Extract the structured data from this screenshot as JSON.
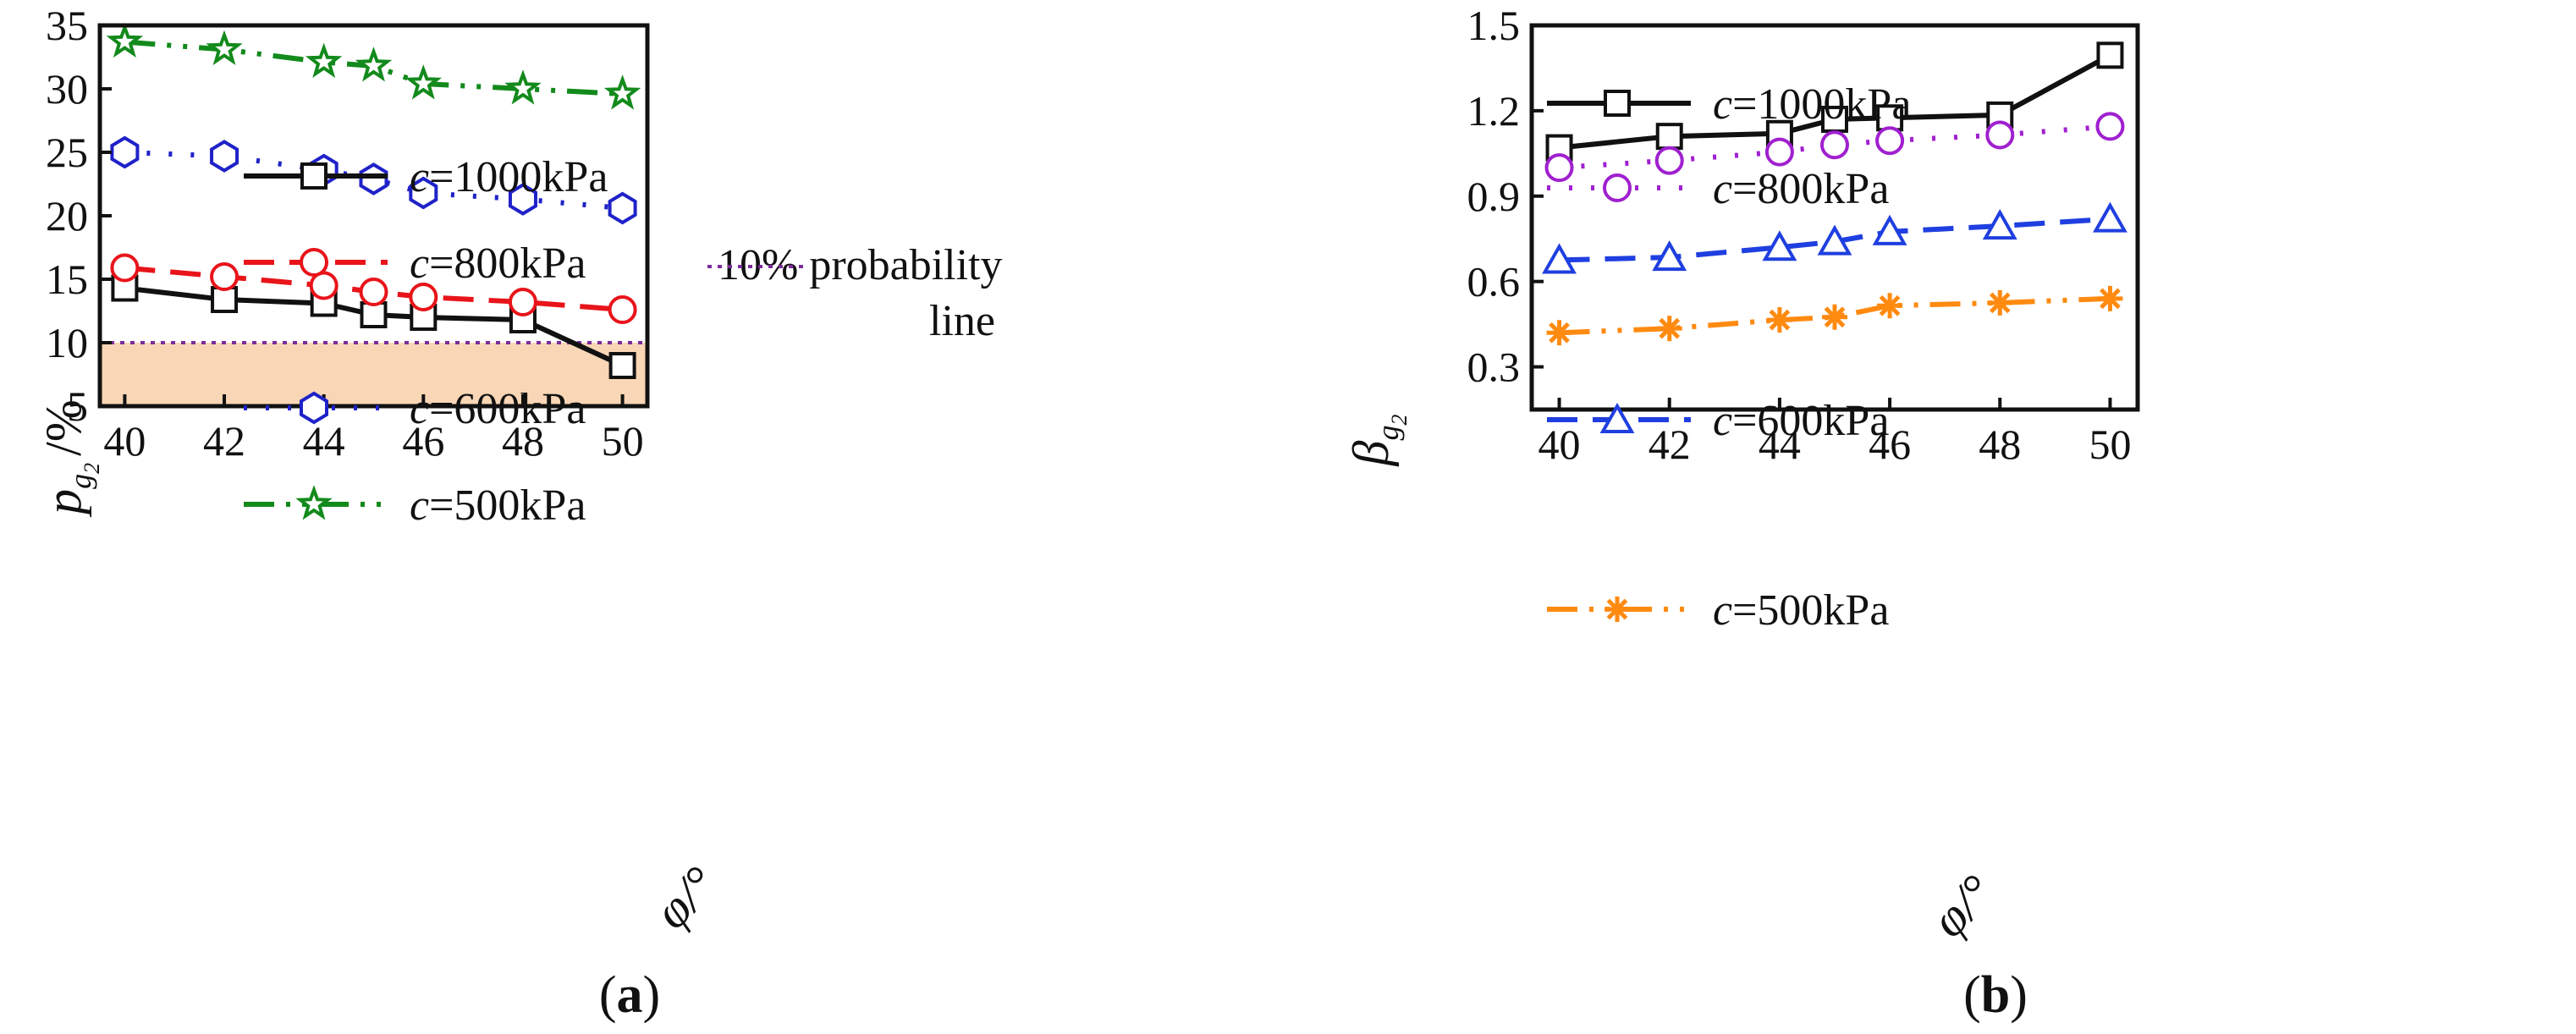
{
  "chart_data": [
    {
      "type": "line",
      "panel": "a",
      "caption_label": "a",
      "x": [
        40,
        42,
        44,
        45,
        46,
        48,
        50
      ],
      "xlim": [
        39.5,
        50.5
      ],
      "ylim": [
        5,
        35
      ],
      "xticks": [
        40,
        42,
        44,
        46,
        48,
        50
      ],
      "yticks": [
        5,
        10,
        15,
        20,
        25,
        30,
        35
      ],
      "xlabel": "φ/°",
      "ylabel_var": "p",
      "ylabel_sub": "g",
      "ylabel_subsub": "2",
      "ylabel_unit": "/%",
      "threshold": {
        "y": 10,
        "label_line1": "10% probability",
        "label_line2": "line",
        "color": "#7a2d9a",
        "fill": "#f9d6b5"
      },
      "series": [
        {
          "name": "c=1000kPa",
          "c_label": "c",
          "value_label": "=1000kPa",
          "color": "#111111",
          "dash": "",
          "marker": "square",
          "values": [
            14.3,
            13.4,
            13.1,
            12.2,
            12.0,
            11.8,
            8.2
          ]
        },
        {
          "name": "c=800kPa",
          "c_label": "c",
          "value_label": "=800kPa",
          "color": "#e8141a",
          "dash": "36 18",
          "marker": "circle",
          "values": [
            15.9,
            15.2,
            14.5,
            14.0,
            13.6,
            13.2,
            12.6
          ]
        },
        {
          "name": "c=600kPa",
          "c_label": "c",
          "value_label": "=600kPa",
          "color": "#1f22c8",
          "dash": "4 22",
          "marker": "hexagon",
          "values": [
            25.0,
            24.7,
            23.6,
            22.9,
            21.8,
            21.3,
            20.6
          ]
        },
        {
          "name": "c=500kPa",
          "c_label": "c",
          "value_label": "=500kPa",
          "color": "#138a1c",
          "dash": "36 14 5 14 5 14",
          "marker": "star",
          "values": [
            33.7,
            33.1,
            32.1,
            31.8,
            30.4,
            30.0,
            29.6
          ]
        }
      ]
    },
    {
      "type": "line",
      "panel": "b",
      "caption_label": "b",
      "x": [
        40,
        42,
        44,
        45,
        46,
        48,
        50
      ],
      "xlim": [
        39.5,
        50.5
      ],
      "ylim": [
        0.15,
        1.5
      ],
      "xticks": [
        40,
        42,
        44,
        46,
        48,
        50
      ],
      "yticks": [
        "0.3",
        "0.6",
        "0.9",
        "1.2",
        "1.5"
      ],
      "xlabel": "φ/°",
      "ylabel_var": "β",
      "ylabel_sub": "g",
      "ylabel_subsub": "2",
      "series": [
        {
          "name": "c=1000kPa",
          "c_label": "c",
          "value_label": "=1000kPa",
          "color": "#111111",
          "dash": "",
          "marker": "square",
          "values": [
            1.07,
            1.11,
            1.12,
            1.17,
            1.175,
            1.185,
            1.395
          ]
        },
        {
          "name": "c=800kPa",
          "c_label": "c",
          "value_label": "=800kPa",
          "color": "#a020d0",
          "dash": "4 22",
          "marker": "circle",
          "values": [
            1.0,
            1.025,
            1.055,
            1.08,
            1.095,
            1.115,
            1.145
          ]
        },
        {
          "name": "c=600kPa",
          "c_label": "c",
          "value_label": "=600kPa",
          "color": "#1f3fe0",
          "dash": "36 18",
          "marker": "triangle",
          "values": [
            0.675,
            0.685,
            0.72,
            0.74,
            0.775,
            0.795,
            0.82
          ]
        },
        {
          "name": "c=500kPa",
          "c_label": "c",
          "value_label": "=500kPa",
          "color": "#ff8a10",
          "dash": "36 14 5 14 5 14",
          "marker": "asterisk",
          "values": [
            0.42,
            0.435,
            0.465,
            0.475,
            0.515,
            0.525,
            0.54
          ]
        }
      ]
    }
  ]
}
